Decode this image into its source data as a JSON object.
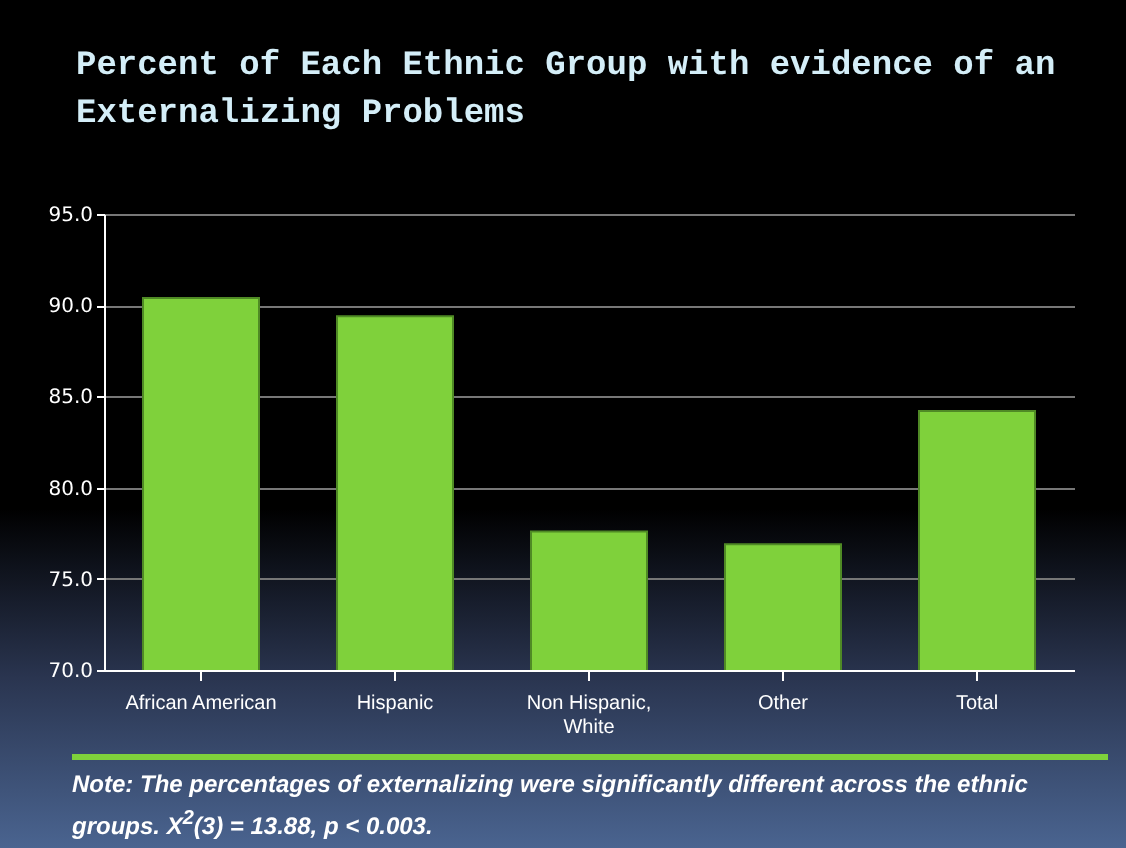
{
  "chart_data": {
    "type": "bar",
    "title": "Percent of Each Ethnic Group with evidence of an Externalizing Problems",
    "categories": [
      "African American",
      "Hispanic",
      "Non Hispanic, White",
      "Other",
      "Total"
    ],
    "values": [
      90.4,
      89.4,
      77.6,
      76.9,
      84.2
    ],
    "color": "#7fd13b",
    "ylim": [
      70,
      95
    ],
    "yticks": [
      {
        "value": 70,
        "label": "70.0"
      },
      {
        "value": 75,
        "label": "75.0"
      },
      {
        "value": 80,
        "label": "80.0"
      },
      {
        "value": 85,
        "label": "85.0"
      },
      {
        "value": 90,
        "label": "90.0"
      },
      {
        "value": 95,
        "label": "95.0"
      }
    ],
    "grid": "y",
    "annotations": [
      "Note: The percentages of externalizing were significantly different across the ethnic groups. X$^{2}$(3) = 13.88, p <  0.003."
    ]
  }
}
